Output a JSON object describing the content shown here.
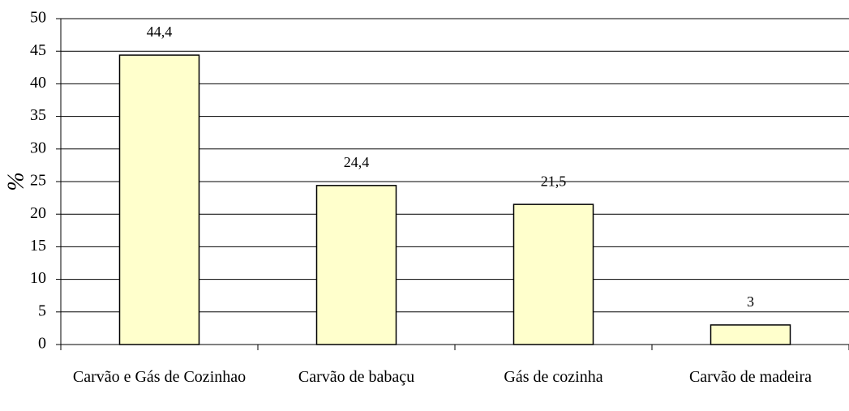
{
  "chart_data": {
    "type": "bar",
    "y_label": "%",
    "categories": [
      "Carvão e Gás de Cozinhao",
      "Carvão de babaçu",
      "Gás de cozinha",
      "Carvão de madeira"
    ],
    "values": [
      44.4,
      24.4,
      21.5,
      3
    ],
    "value_labels": [
      "44,4",
      "24,4",
      "21,5",
      "3"
    ],
    "color": "#ffffcc",
    "ylim": [
      0,
      50
    ],
    "yticks": [
      0,
      5,
      10,
      15,
      20,
      25,
      30,
      35,
      40,
      45,
      50
    ],
    "grid": true
  }
}
